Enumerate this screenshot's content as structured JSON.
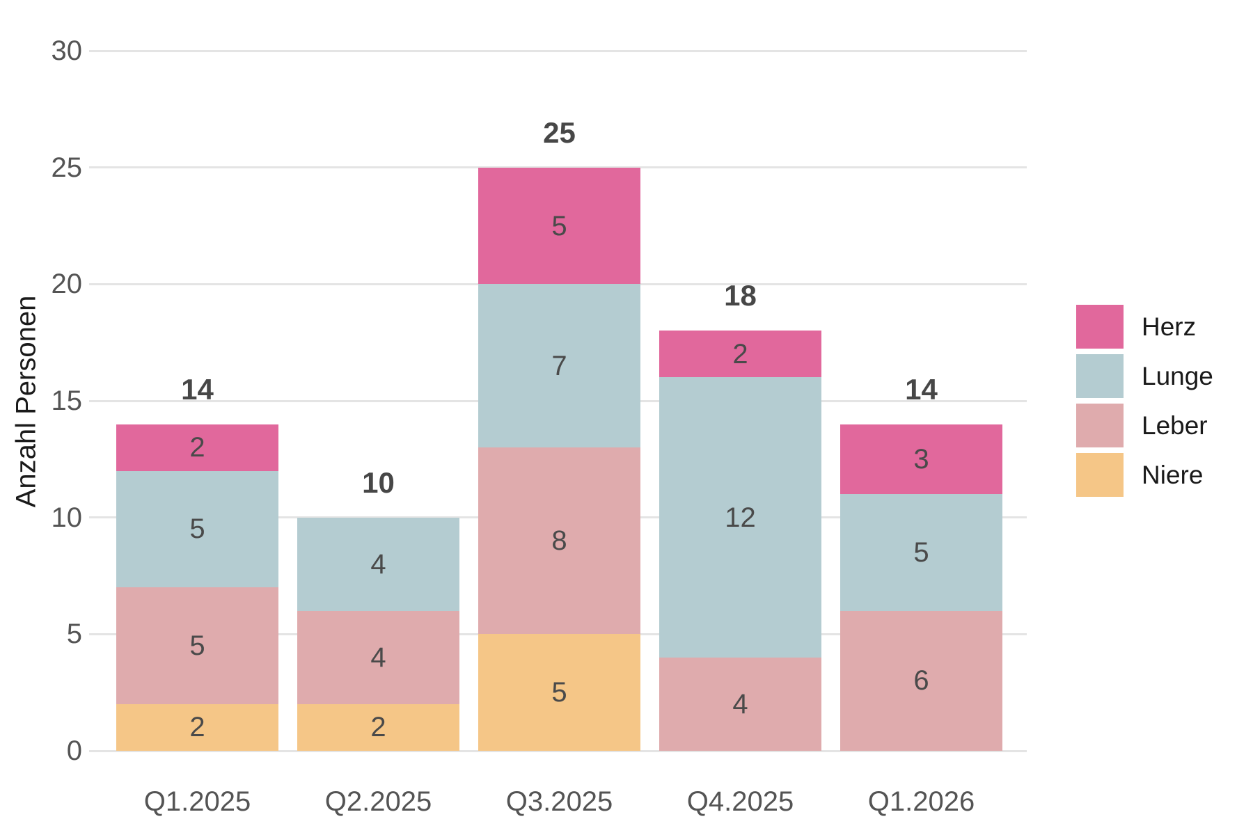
{
  "chart_data": {
    "type": "bar",
    "stacked": true,
    "title": "",
    "xlabel": "",
    "ylabel": "Anzahl Personen",
    "categories": [
      "Q1.2025",
      "Q2.2025",
      "Q3.2025",
      "Q4.2025",
      "Q1.2026"
    ],
    "series": [
      {
        "name": "Niere",
        "color": "#F5C687",
        "values": [
          2,
          2,
          5,
          0,
          0
        ]
      },
      {
        "name": "Leber",
        "color": "#DFABAD",
        "values": [
          5,
          4,
          8,
          4,
          6
        ]
      },
      {
        "name": "Lunge",
        "color": "#B4CCD1",
        "values": [
          5,
          4,
          7,
          12,
          5
        ]
      },
      {
        "name": "Herz",
        "color": "#E1689C",
        "values": [
          2,
          0,
          5,
          2,
          3
        ]
      }
    ],
    "totals": [
      14,
      10,
      25,
      18,
      14
    ],
    "ylim": [
      0,
      30
    ],
    "y_ticks": [
      0,
      5,
      10,
      15,
      20,
      25,
      30
    ],
    "grid": "horizontal-major",
    "legend_position": "right",
    "legend_order": [
      "Herz",
      "Lunge",
      "Leber",
      "Niere"
    ]
  },
  "style_colors": {
    "background": "#FFFFFF",
    "grid": "#E4E4E4",
    "tick_text": "#545454",
    "segment_text": "#4A4A4A",
    "total_text": "#474747",
    "axis_title_text": "#1A1A1A",
    "legend_text": "#1A1A1A"
  }
}
